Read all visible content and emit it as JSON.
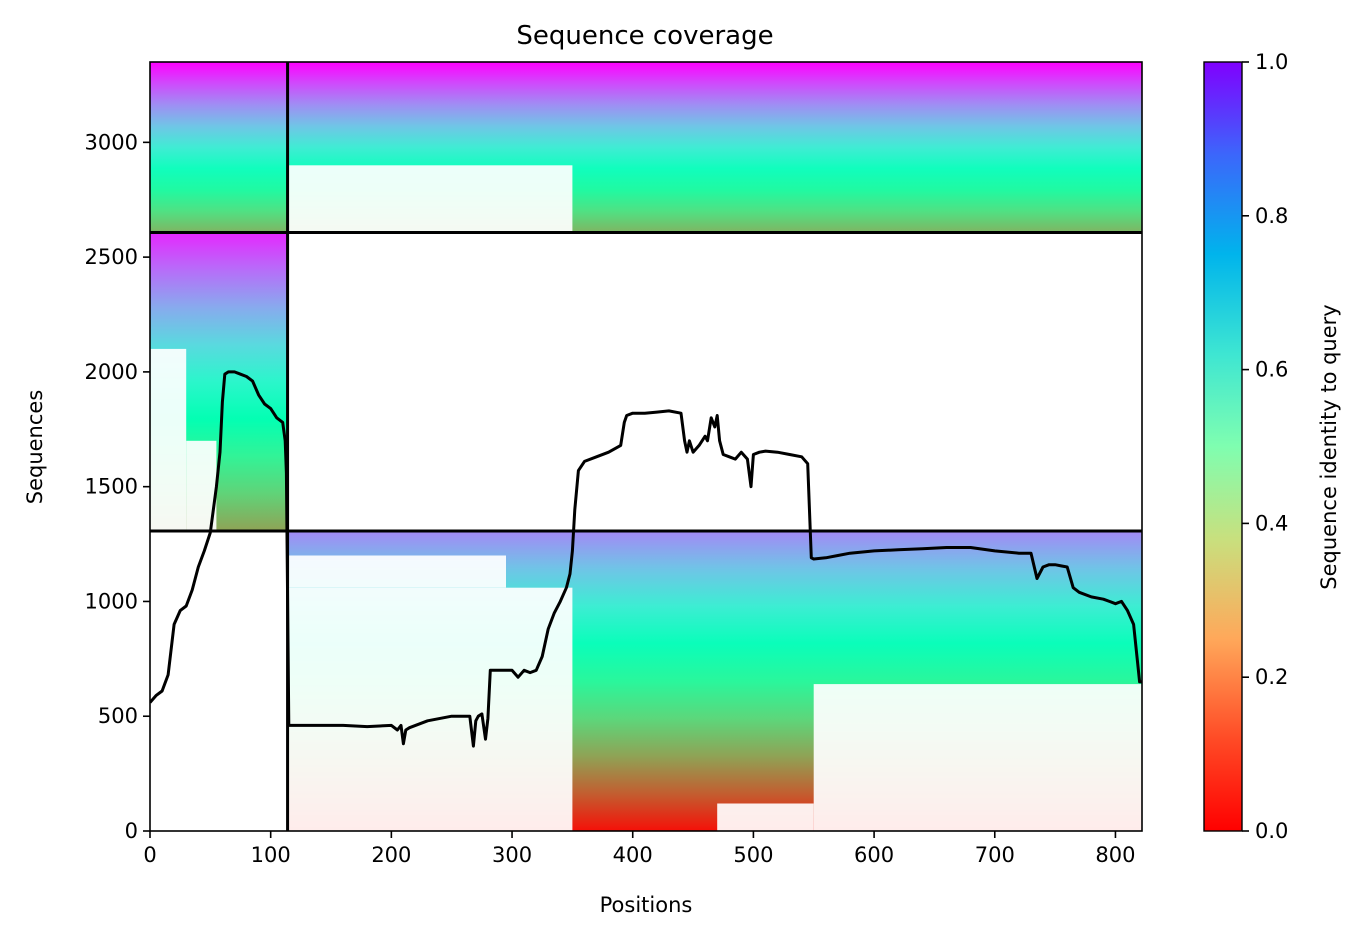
{
  "chart_data": {
    "type": "heatmap",
    "title": "Sequence coverage",
    "xlabel": "Positions",
    "ylabel": "Sequences",
    "colorbar_label": "Sequence identity to query",
    "colormap": "rainbow (red = 0.0, violet = 1.0)",
    "xlim": [
      0,
      822
    ],
    "ylim": [
      0,
      3350
    ],
    "clim": [
      0.0,
      1.0
    ],
    "xticks": [
      0,
      100,
      200,
      300,
      400,
      500,
      600,
      700,
      800
    ],
    "yticks": [
      0,
      500,
      1000,
      1500,
      2000,
      2500,
      3000
    ],
    "colorbar_ticks": [
      "0.0",
      "0.2",
      "0.4",
      "0.6",
      "0.8",
      "1.0"
    ],
    "grid": false,
    "chain_boundaries": {
      "x": [
        114
      ],
      "y": [
        1307,
        2607
      ]
    },
    "blocks": [
      {
        "name": "chain1-msa-block",
        "x": [
          0,
          114
        ],
        "y": [
          2607,
          3350
        ],
        "identity_bottom": 0.25,
        "identity_top": 1.0
      },
      {
        "name": "chain2-msa-block",
        "x": [
          114,
          822
        ],
        "y": [
          2607,
          3350
        ],
        "identity_bottom": 0.25,
        "identity_top": 1.0
      },
      {
        "name": "chain1-only-block",
        "x": [
          0,
          114
        ],
        "y": [
          1307,
          2607
        ],
        "identity_bottom": 0.22,
        "identity_top": 0.95
      },
      {
        "name": "chain2-only-block",
        "x": [
          114,
          822
        ],
        "y": [
          0,
          1307
        ],
        "identity_bottom": 0.02,
        "identity_top": 0.82
      }
    ],
    "series": [
      {
        "type": "line",
        "color": "#000000",
        "x": [
          0,
          5,
          10,
          15,
          20,
          25,
          30,
          35,
          40,
          45,
          50,
          55,
          58,
          60,
          62,
          65,
          70,
          75,
          80,
          85,
          90,
          95,
          100,
          105,
          110,
          112,
          113,
          115,
          120,
          140,
          160,
          180,
          200,
          205,
          208,
          210,
          212,
          215,
          230,
          250,
          265,
          268,
          270,
          272,
          275,
          278,
          280,
          282,
          285,
          290,
          295,
          300,
          305,
          310,
          315,
          320,
          325,
          330,
          335,
          340,
          345,
          348,
          350,
          352,
          355,
          360,
          370,
          380,
          390,
          393,
          395,
          400,
          410,
          420,
          430,
          440,
          443,
          445,
          447,
          450,
          455,
          460,
          462,
          465,
          468,
          470,
          472,
          475,
          480,
          485,
          490,
          495,
          498,
          500,
          505,
          510,
          520,
          530,
          540,
          545,
          548,
          550,
          560,
          570,
          580,
          600,
          620,
          640,
          660,
          680,
          700,
          720,
          730,
          735,
          740,
          745,
          750,
          755,
          760,
          765,
          770,
          780,
          790,
          795,
          800,
          805,
          810,
          815,
          820,
          822
        ],
        "y": [
          560,
          590,
          610,
          680,
          900,
          960,
          980,
          1050,
          1150,
          1220,
          1300,
          1500,
          1650,
          1870,
          1990,
          2000,
          2000,
          1990,
          1980,
          1960,
          1900,
          1860,
          1840,
          1800,
          1780,
          1700,
          1560,
          460,
          460,
          460,
          460,
          455,
          460,
          440,
          460,
          380,
          440,
          450,
          480,
          500,
          500,
          370,
          480,
          500,
          510,
          400,
          490,
          700,
          700,
          700,
          700,
          700,
          670,
          700,
          690,
          700,
          760,
          880,
          950,
          1000,
          1060,
          1120,
          1220,
          1400,
          1570,
          1610,
          1630,
          1650,
          1680,
          1780,
          1810,
          1820,
          1820,
          1825,
          1830,
          1820,
          1700,
          1650,
          1700,
          1650,
          1680,
          1720,
          1700,
          1800,
          1760,
          1810,
          1700,
          1640,
          1630,
          1620,
          1650,
          1620,
          1500,
          1640,
          1650,
          1655,
          1650,
          1640,
          1630,
          1600,
          1190,
          1185,
          1190,
          1200,
          1210,
          1220,
          1225,
          1230,
          1235,
          1235,
          1220,
          1210,
          1210,
          1100,
          1150,
          1160,
          1160,
          1155,
          1150,
          1060,
          1040,
          1020,
          1010,
          1000,
          990,
          1000,
          960,
          900,
          650,
          650
        ]
      }
    ]
  }
}
